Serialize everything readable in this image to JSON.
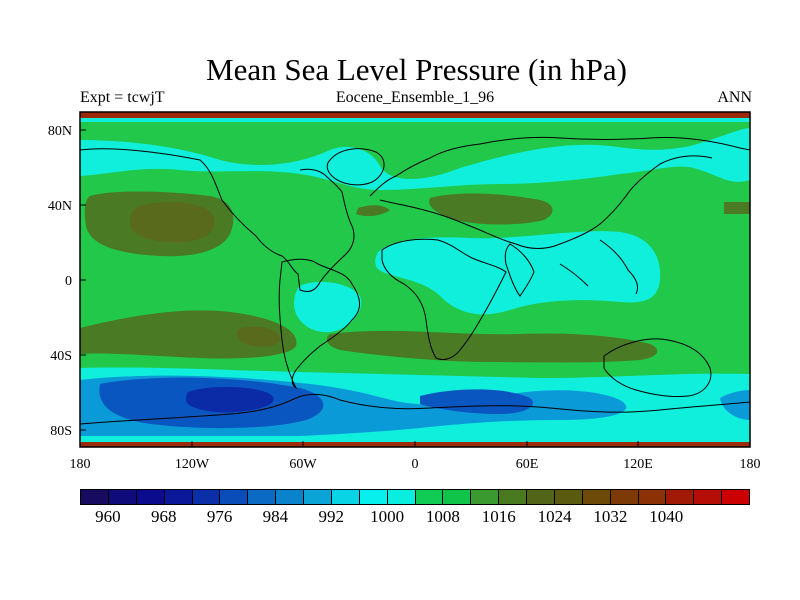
{
  "title": "Mean Sea Level Pressure (in hPa)",
  "subtitle_left": "Expt = tcwjT",
  "subtitle_center": "Eocene_Ensemble_1_96",
  "subtitle_right": "ANN",
  "lat_labels": [
    "80N",
    "40N",
    "0",
    "40S",
    "80S"
  ],
  "lon_labels": [
    "180",
    "120W",
    "60W",
    "0",
    "60E",
    "120E",
    "180"
  ],
  "colorbar": {
    "labels": [
      "960",
      "968",
      "976",
      "984",
      "992",
      "1000",
      "1008",
      "1016",
      "1024",
      "1032",
      "1040"
    ],
    "colors": [
      "#160b5e",
      "#100b7a",
      "#0b0b8e",
      "#0a1899",
      "#0a2fa8",
      "#0a4cb8",
      "#0a6ac4",
      "#0a82cc",
      "#0aa5d6",
      "#08d4e6",
      "#08f0ee",
      "#0aeee0",
      "#10cc55",
      "#10c44a",
      "#3a9a30",
      "#4a7a20",
      "#526418",
      "#5a5a10",
      "#6e4a08",
      "#7e3a06",
      "#8c3006",
      "#a01a06",
      "#b40e06",
      "#cc0000"
    ]
  },
  "regions": {
    "background": "#22c84a",
    "high": "#4a7a24",
    "low_cyan": "#10eedc",
    "lower_blue": "#0a9ad8",
    "lowest_blue": "#0a56c0",
    "deep_blue": "#0a2aa6",
    "polar_red": "#9a2a08"
  }
}
